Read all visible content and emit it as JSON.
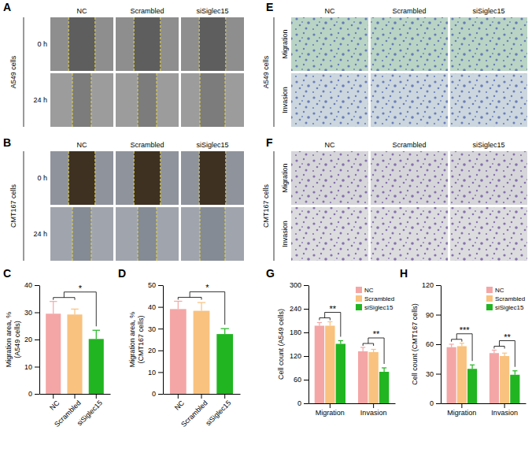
{
  "image_panels": [
    {
      "title": "A",
      "group_label": "A549 cells",
      "columns": [
        "NC",
        "Scrambled",
        "siSiglec15"
      ],
      "rows": [
        "0 h",
        "24 h"
      ]
    },
    {
      "title": "B",
      "group_label": "CMT167 cells",
      "columns": [
        "NC",
        "Scrambled",
        "siSiglec15"
      ],
      "rows": [
        "0 h",
        "24 h"
      ]
    },
    {
      "title": "E",
      "group_label": "A549 cells",
      "columns": [
        "NC",
        "Scrambled",
        "siSiglec15"
      ],
      "rows": [
        "Migration",
        "Invasion"
      ]
    },
    {
      "title": "F",
      "group_label": "CMT167 cells",
      "columns": [
        "NC",
        "Scrambled",
        "siSiglec15"
      ],
      "rows": [
        "Migration",
        "Invasion"
      ]
    }
  ],
  "chart_data": [
    {
      "type": "bar",
      "title": "C",
      "categories": [
        "NC",
        "Scrambled",
        "siSiglec15"
      ],
      "values": [
        29.5,
        29.2,
        20.2
      ],
      "errors": [
        4.5,
        2.0,
        3.2
      ],
      "colors": [
        "#f4a6a6",
        "#f9c27f",
        "#21b521"
      ],
      "ylabel": "Migration area, %\n(A549 cells)",
      "ylim": [
        0,
        40
      ],
      "yticks": [
        0,
        10,
        20,
        30,
        40
      ],
      "annotations": [
        "*"
      ]
    },
    {
      "type": "bar",
      "title": "D",
      "categories": [
        "NC",
        "Scrambled",
        "siSiglec15"
      ],
      "values": [
        39,
        38.2,
        27.5
      ],
      "errors": [
        3.6,
        3.8,
        2.5
      ],
      "colors": [
        "#f4a6a6",
        "#f9c27f",
        "#21b521"
      ],
      "ylabel": "Migration area, %\n(CMT167 cells)",
      "ylim": [
        0,
        50
      ],
      "yticks": [
        0,
        10,
        20,
        30,
        40,
        50
      ],
      "annotations": [
        "*"
      ]
    },
    {
      "type": "bar",
      "title": "G",
      "categories": [
        "Migration",
        "Invasion"
      ],
      "series": [
        {
          "name": "NC",
          "color": "#f4a6a6",
          "values": [
            197,
            132
          ],
          "errors": [
            8,
            10
          ]
        },
        {
          "name": "Scrambled",
          "color": "#f9c27f",
          "values": [
            197,
            130
          ],
          "errors": [
            10,
            7
          ]
        },
        {
          "name": "siSiglec15",
          "color": "#21b521",
          "values": [
            151,
            80
          ],
          "errors": [
            8,
            10
          ]
        }
      ],
      "ylabel": "Cell count (A549 cells)",
      "ylim": [
        0,
        300
      ],
      "yticks": [
        0,
        60,
        120,
        180,
        240,
        300
      ],
      "legend": "top-right",
      "annotations": [
        "**",
        "**"
      ]
    },
    {
      "type": "bar",
      "title": "H",
      "categories": [
        "Migration",
        "Invasion"
      ],
      "series": [
        {
          "name": "NC",
          "color": "#f4a6a6",
          "values": [
            57,
            51
          ],
          "errors": [
            3,
            3
          ]
        },
        {
          "name": "Scrambled",
          "color": "#f9c27f",
          "values": [
            58,
            48
          ],
          "errors": [
            3,
            3
          ]
        },
        {
          "name": "siSiglec15",
          "color": "#21b521",
          "values": [
            35,
            29
          ],
          "errors": [
            4,
            4
          ]
        }
      ],
      "ylabel": "Cell count (CMT167 cells)",
      "ylim": [
        0,
        120
      ],
      "yticks": [
        0,
        30,
        60,
        90,
        120
      ],
      "legend": "top-right",
      "annotations": [
        "***",
        "**"
      ]
    }
  ]
}
